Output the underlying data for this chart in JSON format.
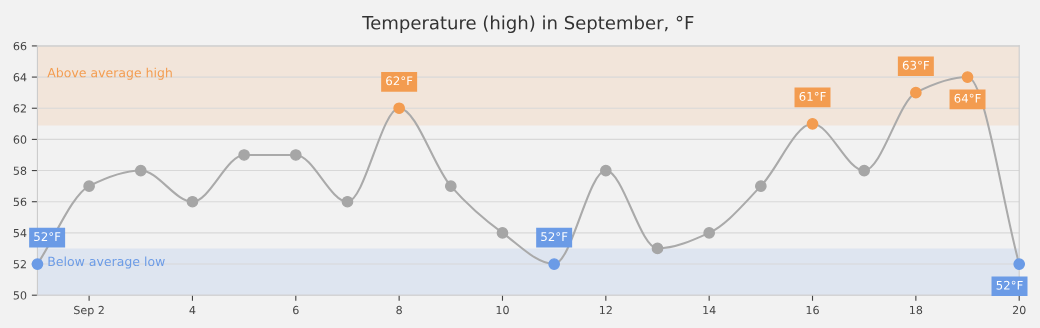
{
  "chart_data": {
    "type": "line",
    "title": "Temperature (high) in September, °F",
    "x": [
      "--09-01",
      "--09-02",
      "--09-03",
      "--09-04",
      "--09-05",
      "--09-06",
      "--09-07",
      "--09-08",
      "--09-09",
      "--09-10",
      "--09-11",
      "--09-12",
      "--09-13",
      "--09-14",
      "--09-15",
      "--09-16",
      "--09-17",
      "--09-18",
      "--09-19",
      "--09-20"
    ],
    "series": [
      {
        "color": "#aaaaaa",
        "colors": [
          "#6b9be6",
          "#a6a6a6",
          "#a6a6a6",
          "#a6a6a6",
          "#a6a6a6",
          "#a6a6a6",
          "#a6a6a6",
          "#f39c50",
          "#a6a6a6",
          "#a6a6a6",
          "#6b9be6",
          "#a6a6a6",
          "#a6a6a6",
          "#a6a6a6",
          "#a6a6a6",
          "#f39c50",
          "#a6a6a6",
          "#f39c50",
          "#f39c50",
          "#6b9be6"
        ],
        "values": [
          52,
          57,
          58,
          56,
          59,
          59,
          56,
          62,
          57,
          54,
          52,
          58,
          53,
          54,
          57,
          61,
          58,
          63,
          64,
          52
        ],
        "value_labels": [
          "52°F",
          null,
          null,
          null,
          null,
          null,
          null,
          "62°F",
          null,
          null,
          "52°F",
          null,
          null,
          null,
          null,
          "61°F",
          null,
          "63°F",
          "64°F",
          "52°F"
        ]
      }
    ],
    "bands": [
      {
        "axis": "y",
        "from": 60.9,
        "to": 66,
        "label": "Above average high",
        "color": "#f39c50"
      },
      {
        "axis": "y",
        "from": 50,
        "to": 53,
        "label": "Below average low",
        "color": "#6b9be6"
      }
    ],
    "xlim": [
      "--09-01",
      "--09-20"
    ],
    "xticks": [
      {
        "value": "--09-02",
        "label": "Sep 2"
      },
      {
        "value": "--09-04",
        "label": "4"
      },
      {
        "value": "--09-06",
        "label": "6"
      },
      {
        "value": "--09-08",
        "label": "8"
      },
      {
        "value": "--09-10",
        "label": "10"
      },
      {
        "value": "--09-12",
        "label": "12"
      },
      {
        "value": "--09-14",
        "label": "14"
      },
      {
        "value": "--09-16",
        "label": "16"
      },
      {
        "value": "--09-18",
        "label": "18"
      },
      {
        "value": "--09-20",
        "label": "20"
      }
    ],
    "ylim": [
      50,
      66
    ],
    "yticks": [
      50,
      52,
      54,
      56,
      58,
      60,
      62,
      64,
      66
    ],
    "grid": "y",
    "marker": "circle",
    "line_style": "solid",
    "legend": false
  }
}
